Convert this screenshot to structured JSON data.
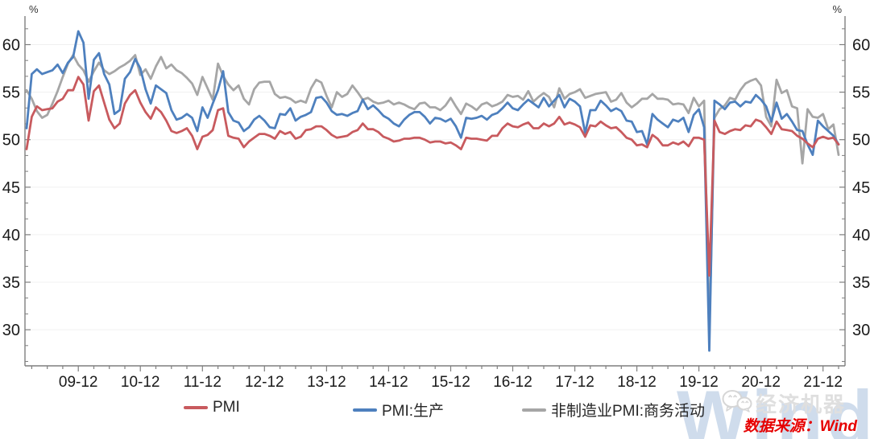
{
  "chart_data": {
    "type": "line",
    "title": "",
    "percent_label": "%",
    "x_start_month": "2009-02",
    "x_end_month": "2022-03",
    "x_tick_labels": [
      "09-12",
      "10-12",
      "11-12",
      "12-12",
      "13-12",
      "14-12",
      "15-12",
      "16-12",
      "17-12",
      "18-12",
      "19-12",
      "20-12",
      "21-12"
    ],
    "first_major_tick_index": 10,
    "major_tick_step_months": 12,
    "minor_tick_step_months": 3,
    "ylim": [
      26.2,
      63.0
    ],
    "y_major_ticks": [
      30,
      35,
      40,
      45,
      50,
      55,
      60
    ],
    "grid": "horizontal-major",
    "legend_position": "bottom",
    "series": [
      {
        "name": "PMI",
        "color": "#C85A5E",
        "values": [
          49.0,
          52.4,
          53.5,
          53.1,
          53.2,
          53.3,
          54.0,
          54.3,
          55.2,
          55.2,
          56.6,
          55.8,
          52.0,
          55.1,
          55.7,
          53.9,
          52.1,
          51.2,
          51.7,
          53.8,
          54.7,
          55.2,
          53.9,
          52.9,
          52.2,
          53.4,
          52.9,
          52.0,
          50.9,
          50.7,
          50.9,
          51.2,
          50.4,
          49.0,
          50.3,
          50.5,
          51.0,
          53.1,
          53.3,
          50.4,
          50.2,
          50.1,
          49.2,
          49.8,
          50.2,
          50.6,
          50.6,
          50.4,
          50.1,
          50.9,
          50.6,
          50.8,
          50.1,
          50.3,
          51.0,
          51.1,
          51.4,
          51.4,
          51.0,
          50.5,
          50.2,
          50.3,
          50.4,
          50.8,
          51.0,
          51.7,
          51.1,
          51.1,
          50.8,
          50.3,
          50.1,
          49.8,
          49.9,
          50.1,
          50.1,
          50.2,
          50.2,
          50.0,
          49.7,
          49.8,
          49.8,
          49.6,
          49.7,
          49.4,
          49.0,
          50.2,
          50.1,
          50.1,
          50.0,
          49.9,
          50.4,
          50.4,
          51.2,
          51.7,
          51.4,
          51.3,
          51.6,
          51.8,
          51.2,
          51.2,
          51.7,
          51.4,
          51.7,
          52.4,
          51.6,
          51.8,
          51.6,
          51.3,
          50.3,
          51.5,
          51.4,
          51.9,
          51.5,
          51.2,
          51.3,
          50.8,
          50.2,
          50.0,
          49.4,
          49.5,
          49.2,
          50.5,
          50.1,
          49.4,
          49.4,
          49.7,
          49.5,
          49.8,
          49.3,
          50.2,
          50.2,
          50.0,
          35.7,
          52.0,
          50.8,
          50.6,
          50.9,
          51.1,
          51.0,
          51.5,
          51.4,
          52.1,
          51.9,
          51.3,
          50.6,
          51.9,
          51.1,
          51.0,
          50.9,
          50.4,
          50.1,
          49.6,
          49.2,
          50.1,
          50.3,
          50.1,
          50.2,
          49.5
        ]
      },
      {
        "name": "PMI:生产",
        "color": "#4E80BE",
        "values": [
          51.2,
          56.9,
          57.4,
          56.9,
          57.1,
          57.3,
          57.9,
          57.0,
          58.1,
          58.7,
          61.4,
          60.2,
          54.3,
          58.4,
          59.1,
          56.9,
          55.8,
          52.7,
          53.1,
          56.4,
          57.1,
          58.5,
          57.5,
          55.3,
          53.8,
          55.7,
          55.3,
          54.9,
          53.1,
          52.1,
          52.3,
          52.7,
          52.3,
          50.9,
          53.4,
          52.3,
          53.8,
          55.2,
          57.2,
          52.9,
          52.0,
          51.8,
          50.9,
          51.3,
          52.1,
          52.5,
          52.0,
          51.3,
          51.2,
          52.7,
          52.6,
          53.3,
          52.0,
          52.4,
          52.6,
          52.9,
          54.4,
          54.5,
          53.9,
          53.0,
          52.6,
          52.7,
          52.5,
          52.8,
          53.0,
          54.2,
          53.2,
          53.6,
          53.1,
          52.5,
          52.2,
          51.7,
          51.4,
          52.1,
          52.6,
          52.9,
          52.9,
          52.4,
          51.7,
          52.3,
          52.2,
          51.9,
          52.2,
          51.4,
          50.2,
          52.3,
          52.2,
          52.3,
          52.5,
          52.1,
          52.6,
          52.8,
          53.3,
          53.9,
          53.3,
          53.1,
          53.7,
          54.2,
          53.8,
          53.4,
          54.4,
          53.5,
          54.1,
          54.7,
          53.4,
          54.3,
          54.0,
          53.5,
          50.7,
          53.1,
          53.1,
          54.1,
          53.6,
          53.0,
          53.3,
          53.0,
          52.0,
          51.9,
          50.8,
          50.9,
          49.5,
          52.7,
          52.1,
          51.7,
          51.3,
          52.1,
          51.9,
          52.3,
          50.8,
          52.6,
          53.2,
          51.3,
          27.8,
          54.1,
          53.7,
          53.2,
          53.9,
          54.0,
          53.5,
          54.0,
          53.9,
          54.7,
          54.2,
          53.5,
          51.9,
          53.9,
          52.2,
          52.7,
          51.9,
          51.0,
          50.9,
          49.5,
          48.4,
          52.0,
          51.4,
          50.9,
          50.4,
          49.5
        ]
      },
      {
        "name": "非制造业PMI:商务活动",
        "color": "#A6A6A6",
        "values": [
          55.2,
          54.3,
          53.0,
          52.3,
          52.6,
          53.8,
          55.1,
          56.6,
          58.0,
          58.9,
          57.9,
          57.3,
          56.1,
          57.2,
          58.1,
          57.3,
          56.9,
          57.2,
          57.6,
          57.9,
          58.3,
          58.9,
          56.8,
          57.4,
          56.4,
          57.7,
          58.7,
          57.5,
          57.9,
          57.3,
          57.0,
          56.5,
          55.9,
          54.7,
          56.6,
          55.4,
          54.2,
          58.0,
          56.7,
          55.8,
          55.2,
          55.7,
          54.3,
          53.7,
          55.3,
          56.0,
          56.1,
          56.1,
          54.8,
          54.4,
          54.5,
          54.3,
          53.9,
          54.1,
          53.9,
          55.4,
          56.3,
          56.0,
          54.6,
          53.4,
          55.0,
          54.5,
          54.8,
          55.7,
          55.0,
          54.2,
          54.4,
          54.0,
          53.8,
          53.9,
          54.1,
          53.7,
          53.9,
          53.7,
          53.4,
          53.2,
          53.8,
          53.9,
          53.4,
          53.4,
          53.1,
          53.6,
          54.4,
          53.5,
          52.7,
          53.8,
          53.5,
          53.1,
          53.7,
          53.9,
          53.5,
          53.7,
          54.0,
          54.7,
          54.5,
          54.6,
          54.2,
          55.1,
          54.0,
          54.5,
          54.9,
          54.5,
          53.4,
          55.4,
          54.3,
          54.8,
          55.0,
          55.3,
          54.4,
          54.6,
          54.8,
          54.9,
          55.0,
          54.0,
          54.2,
          54.9,
          53.9,
          53.4,
          53.8,
          54.3,
          54.3,
          54.8,
          54.3,
          54.3,
          54.2,
          53.7,
          53.8,
          53.7,
          52.8,
          54.4,
          53.5,
          54.1,
          29.6,
          52.3,
          53.2,
          53.6,
          54.4,
          54.2,
          55.2,
          55.9,
          56.2,
          56.4,
          55.7,
          52.4,
          51.4,
          56.3,
          54.9,
          55.2,
          53.5,
          53.3,
          47.5,
          53.2,
          52.4,
          52.3,
          52.7,
          51.1,
          51.6,
          48.4
        ]
      }
    ]
  },
  "colors": {
    "axis": "#7F7F7F",
    "grid": "#F0F0F0",
    "tick_label": "#1A1A1A",
    "source_red": "#E60000",
    "watermark_blue": "#A9C0DE",
    "watermark_gray": "#DFDFDF"
  },
  "legend": {
    "items": [
      "PMI",
      "PMI:生产",
      "非制造业PMI:商务活动"
    ]
  },
  "watermark": {
    "brand": "经济机器",
    "wind": "Wind"
  },
  "source": {
    "text": "数据来源：Wind"
  }
}
